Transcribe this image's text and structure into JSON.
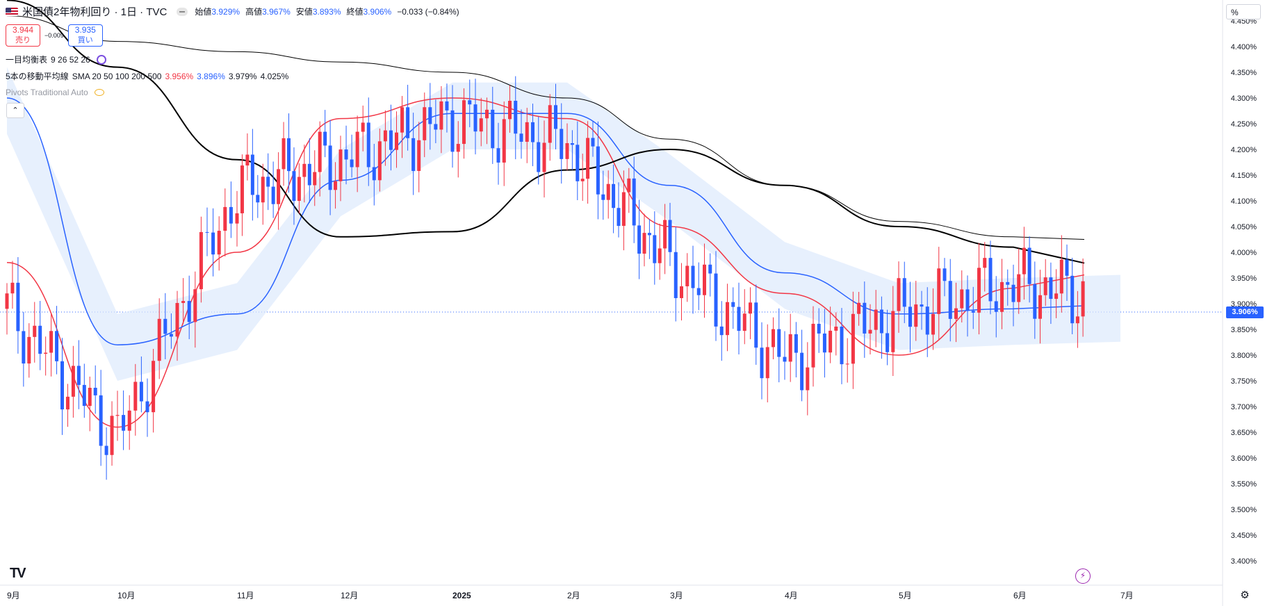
{
  "header": {
    "title": "米国債2年物利回り · 1日 · TVC",
    "ohlc": [
      {
        "label": "始値",
        "value": "3.929%"
      },
      {
        "label": "高値",
        "value": "3.967%"
      },
      {
        "label": "安値",
        "value": "3.893%"
      },
      {
        "label": "終値",
        "value": "3.906%"
      }
    ],
    "change": "−0.033 (−0.84%)"
  },
  "trade": {
    "sell_price": "3.944",
    "sell_label": "売り",
    "spread": "−0.009",
    "buy_price": "3.935",
    "buy_label": "買い"
  },
  "indicators": {
    "ichimoku_label": "一目均衡表",
    "ichimoku_params": "9 26 52 26",
    "sma_label": "5本の移動平均線",
    "sma_params": "SMA 20 50 100 200 500",
    "sma_values": [
      "3.956%",
      "3.896%",
      "3.979%",
      "4.025%"
    ],
    "pivots_label": "Pivots Traditional Auto"
  },
  "price_axis": {
    "unit": "%",
    "ticks": [
      "4.450%",
      "4.400%",
      "4.350%",
      "4.300%",
      "4.250%",
      "4.200%",
      "4.150%",
      "4.100%",
      "4.050%",
      "4.000%",
      "3.950%",
      "3.900%",
      "3.850%",
      "3.800%",
      "3.750%",
      "3.700%",
      "3.650%",
      "3.600%",
      "3.550%",
      "3.500%",
      "3.450%",
      "3.400%"
    ],
    "last_price_label": "3.906%"
  },
  "time_axis": {
    "ticks": [
      "9月",
      "10月",
      "11月",
      "12月",
      "2025",
      "2月",
      "3月",
      "4月",
      "5月",
      "6月",
      "7月"
    ]
  },
  "colors": {
    "up": "#f23645",
    "down": "#2962ff",
    "sma_fast": "#f23645",
    "sma_mid": "#2962ff",
    "sma_slow": "#000000",
    "cloud_bull": "#fde3e5",
    "cloud_bear": "#ddeafc"
  },
  "chart_data": {
    "type": "line",
    "title": "米国債2年物利回り · 1日 · TVC",
    "ylim": [
      3.39,
      4.47
    ],
    "grid": false,
    "x": [
      "2024-09",
      "2024-10",
      "2024-11",
      "2024-12",
      "2025-01",
      "2025-02",
      "2025-03",
      "2025-04",
      "2025-05",
      "2025-06",
      "2025-07"
    ],
    "series": [
      {
        "name": "終値",
        "values": [
          3.89,
          3.64,
          4.12,
          4.18,
          4.26,
          4.21,
          3.98,
          3.79,
          3.88,
          3.94,
          3.906
        ]
      },
      {
        "name": "SMA 20",
        "values": [
          3.98,
          3.66,
          4.0,
          4.26,
          4.3,
          4.26,
          4.05,
          3.92,
          3.8,
          3.93,
          3.956
        ]
      },
      {
        "name": "SMA 50",
        "values": [
          4.3,
          3.82,
          3.88,
          4.14,
          4.27,
          4.27,
          4.13,
          3.96,
          3.88,
          3.89,
          3.896
        ]
      },
      {
        "name": "SMA 200",
        "values": [
          4.49,
          4.36,
          4.18,
          4.03,
          4.04,
          4.16,
          4.2,
          4.13,
          4.05,
          4.01,
          3.979
        ]
      },
      {
        "name": "SMA 500",
        "values": [
          4.46,
          4.41,
          4.39,
          4.37,
          4.35,
          4.3,
          4.22,
          4.13,
          4.06,
          4.03,
          4.025
        ]
      }
    ]
  }
}
